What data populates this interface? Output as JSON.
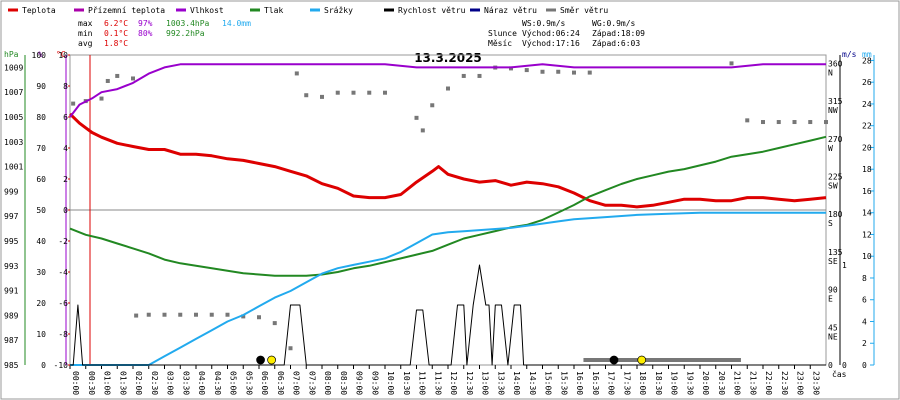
{
  "chart_data": {
    "type": "line",
    "title": "13.3.2025",
    "xlabel": "čas",
    "legend": [
      {
        "name": "Teplota",
        "color": "#dd0000"
      },
      {
        "name": "Přízemní teplota",
        "color": "#aa00aa"
      },
      {
        "name": "Vlhkost",
        "color": "#9900cc"
      },
      {
        "name": "Tlak",
        "color": "#228822"
      },
      {
        "name": "Srážky",
        "color": "#22aaee"
      },
      {
        "name": "Rychlost větru",
        "color": "#000000"
      },
      {
        "name": "Náraz větru",
        "color": "#000088"
      },
      {
        "name": "Směr větru",
        "color": "#777777"
      }
    ],
    "stats": {
      "max": {
        "label": "max",
        "temp": "6.2°C",
        "hum": "97%",
        "press": "1003.4hPa",
        "rain": "14.0mm"
      },
      "min": {
        "label": "min",
        "temp": "0.1°C",
        "hum": "80%",
        "press": "992.2hPa"
      },
      "avg": {
        "label": "avg",
        "temp": "1.8°C"
      }
    },
    "info": {
      "ws": "WS:0.9m/s",
      "wg": "WG:0.9m/s",
      "sun_label": "Slunce",
      "sunrise": "Východ:06:24",
      "sunset": "Západ:18:09",
      "moon_label": "Měsíc",
      "moonrise": "Východ:17:16",
      "moonset": "Západ:6:03"
    },
    "axes": {
      "hpa_unit": "hPa",
      "pct_unit": "%",
      "c_unit": "°C",
      "ms_unit": "m/s",
      "mm_unit": "mm",
      "hpa_ticks": [
        "985",
        "987",
        "989",
        "991",
        "993",
        "995",
        "997",
        "999",
        "1001",
        "1003",
        "1005",
        "1007",
        "1009"
      ],
      "pct_ticks": [
        "0",
        "10",
        "20",
        "30",
        "40",
        "50",
        "60",
        "70",
        "80",
        "90",
        "100"
      ],
      "c_ticks": [
        "-10",
        "-8",
        "-6",
        "-4",
        "-2",
        "0",
        "2",
        "4",
        "6",
        "8",
        "10"
      ],
      "dir_ticks": [
        "0",
        "45\nNE",
        "90\nE",
        "135\nSE",
        "180\nS",
        "225\nSW",
        "270\nW",
        "315\nNW",
        "360\nN"
      ],
      "ms_ticks": [
        "0",
        "1"
      ],
      "mm_ticks": [
        "0",
        "2",
        "4",
        "6",
        "8",
        "10",
        "12",
        "14",
        "16",
        "18",
        "20",
        "22",
        "24",
        "26",
        "28"
      ],
      "x_ticks": [
        "00:00",
        "00:30",
        "01:00",
        "01:30",
        "02:00",
        "02:30",
        "03:00",
        "03:30",
        "04:00",
        "04:30",
        "05:00",
        "05:30",
        "06:00",
        "06:30",
        "07:00",
        "07:30",
        "08:00",
        "08:30",
        "09:00",
        "09:30",
        "10:00",
        "10:30",
        "11:00",
        "11:30",
        "12:00",
        "12:30",
        "13:00",
        "13:30",
        "14:00",
        "14:30",
        "15:00",
        "15:30",
        "16:00",
        "16:30",
        "17:00",
        "17:30",
        "18:00",
        "18:30",
        "19:00",
        "19:30",
        "20:00",
        "20:30",
        "21:00",
        "21:30",
        "22:00",
        "22:30",
        "23:00",
        "23:30"
      ]
    },
    "ranges": {
      "temp": [
        -10,
        10
      ],
      "hum": [
        0,
        100
      ],
      "press": [
        985,
        1010
      ],
      "rain": [
        0,
        28.5
      ],
      "dir": [
        0,
        370
      ],
      "hours": [
        0,
        24
      ]
    },
    "series": [
      {
        "name": "Teplota",
        "unit": "°C",
        "color": "#dd0000",
        "points": [
          [
            0,
            6.2
          ],
          [
            0.3,
            5.6
          ],
          [
            0.7,
            5.0
          ],
          [
            1,
            4.7
          ],
          [
            1.5,
            4.3
          ],
          [
            2,
            4.1
          ],
          [
            2.5,
            3.9
          ],
          [
            3,
            3.9
          ],
          [
            3.5,
            3.6
          ],
          [
            4,
            3.6
          ],
          [
            4.5,
            3.5
          ],
          [
            5,
            3.3
          ],
          [
            5.5,
            3.2
          ],
          [
            6,
            3.0
          ],
          [
            6.5,
            2.8
          ],
          [
            7,
            2.5
          ],
          [
            7.5,
            2.2
          ],
          [
            8,
            1.7
          ],
          [
            8.5,
            1.4
          ],
          [
            9,
            0.9
          ],
          [
            9.5,
            0.8
          ],
          [
            10,
            0.8
          ],
          [
            10.5,
            1.0
          ],
          [
            11,
            1.8
          ],
          [
            11.5,
            2.5
          ],
          [
            11.7,
            2.8
          ],
          [
            12,
            2.3
          ],
          [
            12.5,
            2.0
          ],
          [
            13,
            1.8
          ],
          [
            13.5,
            1.9
          ],
          [
            14,
            1.6
          ],
          [
            14.5,
            1.8
          ],
          [
            15,
            1.7
          ],
          [
            15.5,
            1.5
          ],
          [
            16,
            1.1
          ],
          [
            16.5,
            0.6
          ],
          [
            17,
            0.3
          ],
          [
            17.5,
            0.3
          ],
          [
            18,
            0.2
          ],
          [
            18.5,
            0.3
          ],
          [
            19,
            0.5
          ],
          [
            19.5,
            0.7
          ],
          [
            20,
            0.7
          ],
          [
            20.5,
            0.6
          ],
          [
            21,
            0.6
          ],
          [
            21.5,
            0.8
          ],
          [
            22,
            0.8
          ],
          [
            22.5,
            0.7
          ],
          [
            23,
            0.6
          ],
          [
            23.5,
            0.7
          ],
          [
            24,
            0.8
          ]
        ]
      },
      {
        "name": "Vlhkost",
        "unit": "%",
        "color": "#9900cc",
        "points": [
          [
            0,
            80
          ],
          [
            0.3,
            84
          ],
          [
            0.7,
            86
          ],
          [
            1,
            88
          ],
          [
            1.5,
            89
          ],
          [
            2,
            91
          ],
          [
            2.5,
            94
          ],
          [
            3,
            96
          ],
          [
            3.5,
            97
          ],
          [
            4,
            97
          ],
          [
            5,
            97
          ],
          [
            6,
            97
          ],
          [
            7,
            97
          ],
          [
            8,
            97
          ],
          [
            9,
            97
          ],
          [
            10,
            97
          ],
          [
            11,
            96
          ],
          [
            12,
            96
          ],
          [
            13,
            96
          ],
          [
            14,
            96
          ],
          [
            15,
            97
          ],
          [
            16,
            96
          ],
          [
            17,
            96
          ],
          [
            18,
            96
          ],
          [
            19,
            96
          ],
          [
            20,
            96
          ],
          [
            21,
            96
          ],
          [
            22,
            97
          ],
          [
            23,
            97
          ],
          [
            24,
            97
          ]
        ]
      },
      {
        "name": "Tlak",
        "unit": "hPa",
        "color": "#228822",
        "points": [
          [
            0,
            996.0
          ],
          [
            0.5,
            995.5
          ],
          [
            1,
            995.2
          ],
          [
            1.5,
            994.8
          ],
          [
            2,
            994.4
          ],
          [
            2.5,
            994.0
          ],
          [
            3,
            993.5
          ],
          [
            3.5,
            993.2
          ],
          [
            4,
            993.0
          ],
          [
            4.5,
            992.8
          ],
          [
            5,
            992.6
          ],
          [
            5.5,
            992.4
          ],
          [
            6,
            992.3
          ],
          [
            6.5,
            992.2
          ],
          [
            7,
            992.2
          ],
          [
            7.5,
            992.2
          ],
          [
            8,
            992.3
          ],
          [
            8.5,
            992.5
          ],
          [
            9,
            992.8
          ],
          [
            9.5,
            993.0
          ],
          [
            10,
            993.3
          ],
          [
            10.5,
            993.6
          ],
          [
            11,
            993.9
          ],
          [
            11.5,
            994.2
          ],
          [
            12,
            994.7
          ],
          [
            12.5,
            995.2
          ],
          [
            13,
            995.5
          ],
          [
            13.5,
            995.8
          ],
          [
            14,
            996.1
          ],
          [
            14.5,
            996.3
          ],
          [
            15,
            996.7
          ],
          [
            15.5,
            997.3
          ],
          [
            16,
            997.9
          ],
          [
            16.5,
            998.6
          ],
          [
            17,
            999.1
          ],
          [
            17.5,
            999.6
          ],
          [
            18,
            1000.0
          ],
          [
            18.5,
            1000.3
          ],
          [
            19,
            1000.6
          ],
          [
            19.5,
            1000.8
          ],
          [
            20,
            1001.1
          ],
          [
            20.5,
            1001.4
          ],
          [
            21,
            1001.8
          ],
          [
            21.5,
            1002.0
          ],
          [
            22,
            1002.2
          ],
          [
            22.5,
            1002.5
          ],
          [
            23,
            1002.8
          ],
          [
            23.5,
            1003.1
          ],
          [
            24,
            1003.4
          ]
        ]
      },
      {
        "name": "Srážky",
        "unit": "mm",
        "color": "#22aaee",
        "points": [
          [
            0,
            0
          ],
          [
            2.5,
            0
          ],
          [
            3,
            0.8
          ],
          [
            3.5,
            1.6
          ],
          [
            4,
            2.4
          ],
          [
            4.5,
            3.2
          ],
          [
            5,
            4.0
          ],
          [
            5.5,
            4.6
          ],
          [
            6,
            5.4
          ],
          [
            6.5,
            6.2
          ],
          [
            7,
            6.8
          ],
          [
            7.5,
            7.6
          ],
          [
            8,
            8.4
          ],
          [
            8.5,
            8.9
          ],
          [
            9,
            9.2
          ],
          [
            9.5,
            9.5
          ],
          [
            10,
            9.8
          ],
          [
            10.5,
            10.4
          ],
          [
            11,
            11.2
          ],
          [
            11.5,
            12.0
          ],
          [
            12,
            12.2
          ],
          [
            12.5,
            12.3
          ],
          [
            13,
            12.4
          ],
          [
            13.5,
            12.5
          ],
          [
            14,
            12.6
          ],
          [
            14.5,
            12.8
          ],
          [
            15,
            13.0
          ],
          [
            15.5,
            13.2
          ],
          [
            16,
            13.4
          ],
          [
            17,
            13.6
          ],
          [
            18,
            13.8
          ],
          [
            19,
            13.9
          ],
          [
            20,
            14.0
          ],
          [
            22,
            14.0
          ],
          [
            24,
            14.0
          ]
        ]
      },
      {
        "name": "Rychlost větru",
        "unit": "m/s",
        "color": "#000000",
        "points": [
          [
            0,
            0
          ],
          [
            0.1,
            0
          ],
          [
            0.25,
            0.6
          ],
          [
            0.4,
            0
          ],
          [
            6.8,
            0
          ],
          [
            7,
            0.6
          ],
          [
            7.3,
            0.6
          ],
          [
            7.5,
            0
          ],
          [
            10.8,
            0
          ],
          [
            11,
            0.55
          ],
          [
            11.2,
            0.55
          ],
          [
            11.4,
            0
          ],
          [
            12.1,
            0
          ],
          [
            12.3,
            0.6
          ],
          [
            12.5,
            0.6
          ],
          [
            12.6,
            0
          ],
          [
            12.8,
            0.6
          ],
          [
            13,
            1.0
          ],
          [
            13.2,
            0.6
          ],
          [
            13.3,
            0.6
          ],
          [
            13.4,
            0
          ],
          [
            13.5,
            0.6
          ],
          [
            13.7,
            0.6
          ],
          [
            13.9,
            0
          ],
          [
            14.1,
            0.6
          ],
          [
            14.3,
            0.6
          ],
          [
            14.4,
            0
          ],
          [
            24,
            0
          ]
        ]
      }
    ],
    "wind_direction": [
      [
        0.1,
        312
      ],
      [
        0.5,
        315
      ],
      [
        1,
        318
      ],
      [
        1.2,
        339
      ],
      [
        1.5,
        345
      ],
      [
        2,
        342
      ],
      [
        2.1,
        59
      ],
      [
        2.5,
        60
      ],
      [
        3,
        60
      ],
      [
        3.5,
        60
      ],
      [
        4,
        60
      ],
      [
        4.5,
        60
      ],
      [
        5,
        60
      ],
      [
        5.5,
        58
      ],
      [
        6,
        57
      ],
      [
        6.5,
        50
      ],
      [
        7,
        20
      ],
      [
        7.2,
        348
      ],
      [
        7.5,
        322
      ],
      [
        8,
        320
      ],
      [
        8.5,
        325
      ],
      [
        9,
        325
      ],
      [
        9.5,
        325
      ],
      [
        10,
        325
      ],
      [
        11,
        295
      ],
      [
        11.2,
        280
      ],
      [
        11.5,
        310
      ],
      [
        12,
        330
      ],
      [
        12.5,
        345
      ],
      [
        13,
        345
      ],
      [
        13.5,
        355
      ],
      [
        14,
        354
      ],
      [
        14.5,
        352
      ],
      [
        15,
        350
      ],
      [
        15.5,
        350
      ],
      [
        16,
        349
      ],
      [
        16.5,
        349
      ],
      [
        21,
        360
      ],
      [
        21.5,
        292
      ],
      [
        22,
        290
      ],
      [
        22.5,
        290
      ],
      [
        23,
        290
      ],
      [
        23.5,
        290
      ],
      [
        24,
        290
      ]
    ],
    "markers": [
      {
        "name": "sunrise-dot",
        "hour": 6.4,
        "color": "#ffee00"
      },
      {
        "name": "sunset-dot",
        "hour": 18.15,
        "color": "#ffee00"
      },
      {
        "name": "moonset-dot",
        "hour": 6.05,
        "color": "#000000"
      },
      {
        "name": "moonrise-dot",
        "hour": 17.27,
        "color": "#000000"
      }
    ],
    "moon_line": [
      16.3,
      21.3
    ]
  }
}
